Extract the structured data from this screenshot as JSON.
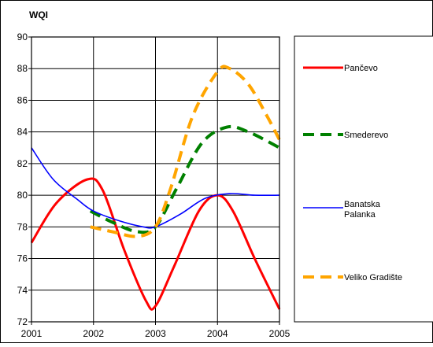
{
  "chart_data": {
    "type": "line",
    "ylabel": "WQI",
    "xlabel": "",
    "title": "",
    "x": [
      2001,
      2002,
      2003,
      2004,
      2005
    ],
    "xlim": [
      2001,
      2005
    ],
    "ylim": [
      72,
      90
    ],
    "yticks": [
      "72",
      "74",
      "76",
      "78",
      "80",
      "82",
      "84",
      "86",
      "88",
      "90"
    ],
    "xticks": [
      "2001",
      "2002",
      "2003",
      "2004",
      "2005"
    ],
    "grid": true,
    "legend_placement": "right",
    "series": [
      {
        "name": "Pančevo",
        "color": "#ff0000",
        "dash": "solid",
        "points": [
          [
            2001,
            77.0
          ],
          [
            2001.4,
            79.5
          ],
          [
            2001.9,
            81.0
          ],
          [
            2002.15,
            80.3
          ],
          [
            2002.5,
            76.5
          ],
          [
            2002.85,
            73.3
          ],
          [
            2003.0,
            73.0
          ],
          [
            2003.3,
            75.5
          ],
          [
            2003.7,
            79.0
          ],
          [
            2004.0,
            80.0
          ],
          [
            2004.25,
            79.0
          ],
          [
            2004.6,
            76.0
          ],
          [
            2005.0,
            72.8
          ]
        ]
      },
      {
        "name": "Smederevo",
        "color": "#008000",
        "dash": "dashed",
        "points": [
          [
            2001.95,
            79.0
          ],
          [
            2002.3,
            78.3
          ],
          [
            2002.7,
            77.7
          ],
          [
            2003.0,
            78.0
          ],
          [
            2003.35,
            80.5
          ],
          [
            2003.75,
            83.3
          ],
          [
            2004.15,
            84.3
          ],
          [
            2004.5,
            84.0
          ],
          [
            2005.0,
            83.0
          ]
        ]
      },
      {
        "name": "Banatska Palanka",
        "color": "#0000ff",
        "dash": "solid",
        "points": [
          [
            2001,
            83.0
          ],
          [
            2001.35,
            81.0
          ],
          [
            2001.75,
            79.7
          ],
          [
            2002.0,
            79.0
          ],
          [
            2002.4,
            78.4
          ],
          [
            2002.8,
            78.0
          ],
          [
            2003.0,
            78.0
          ],
          [
            2003.4,
            78.8
          ],
          [
            2003.8,
            79.8
          ],
          [
            2004.2,
            80.1
          ],
          [
            2004.6,
            80.0
          ],
          [
            2005.0,
            80.0
          ]
        ]
      },
      {
        "name": "Veliko Gradište",
        "color": "#ffa500",
        "dash": "dashed",
        "points": [
          [
            2001.95,
            78.0
          ],
          [
            2002.3,
            77.7
          ],
          [
            2002.7,
            77.4
          ],
          [
            2003.0,
            78.0
          ],
          [
            2003.25,
            80.5
          ],
          [
            2003.6,
            85.0
          ],
          [
            2004.0,
            87.8
          ],
          [
            2004.2,
            88.0
          ],
          [
            2004.5,
            87.0
          ],
          [
            2004.8,
            85.0
          ],
          [
            2005.0,
            83.5
          ]
        ]
      }
    ]
  }
}
